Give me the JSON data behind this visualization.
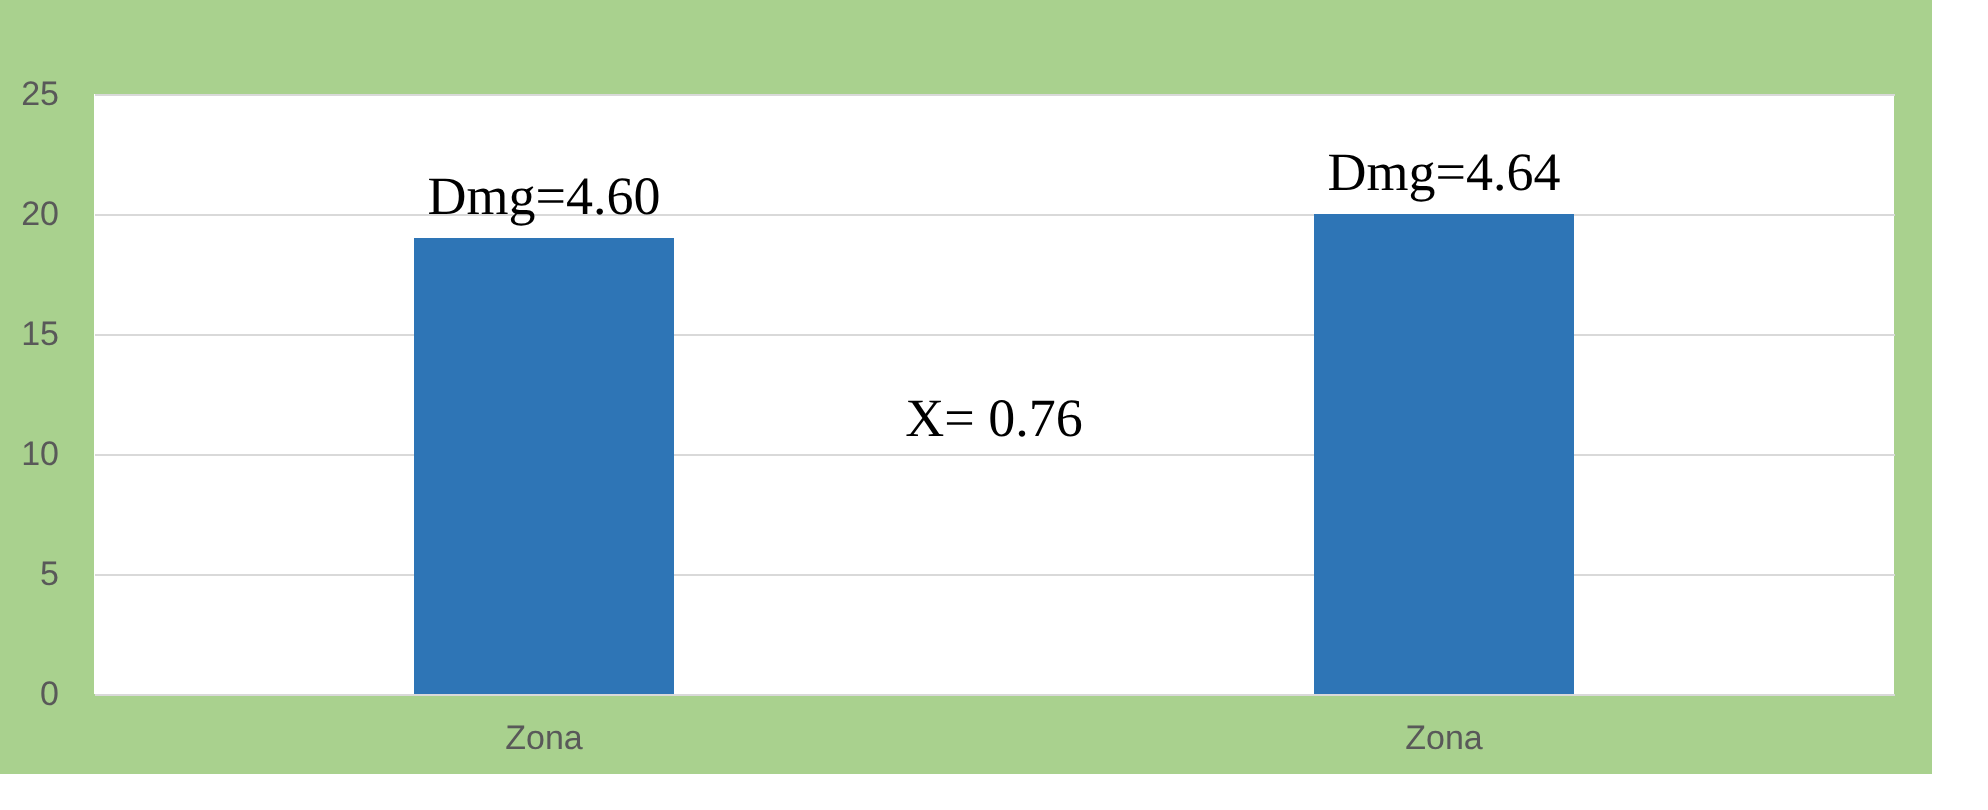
{
  "chart_data": {
    "type": "bar",
    "categories": [
      "Zona",
      "Zona"
    ],
    "values": [
      19,
      20
    ],
    "color": "#2e75b6",
    "ylim": [
      0,
      25
    ],
    "yticks": [
      0,
      5,
      10,
      15,
      20,
      25
    ],
    "grid": "y",
    "annotations": [
      "Dmg=4.60",
      "Dmg=4.64",
      "X= 0.76"
    ]
  }
}
